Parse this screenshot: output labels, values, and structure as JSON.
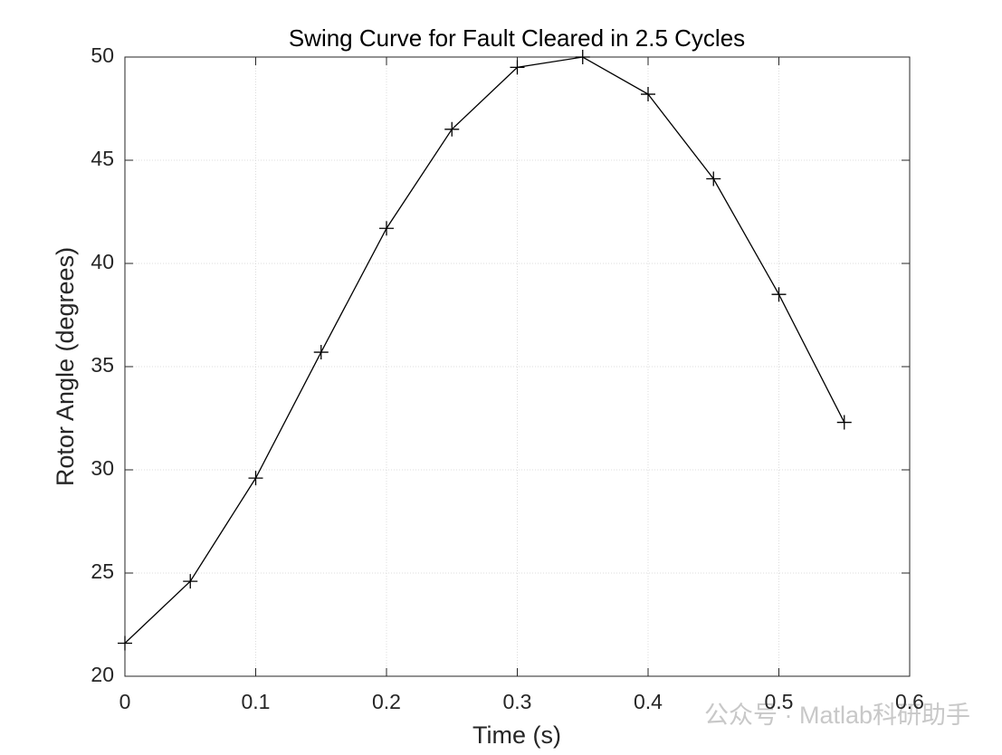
{
  "chart_data": {
    "type": "line",
    "title": "Swing Curve for Fault Cleared in 2.5 Cycles",
    "x_label": "Time (s)",
    "y_label": "Rotor Angle (degrees)",
    "x": [
      0,
      0.05,
      0.1,
      0.15,
      0.2,
      0.25,
      0.3,
      0.35,
      0.4,
      0.45,
      0.5,
      0.55
    ],
    "series": [
      {
        "name": "Rotor Angle",
        "color": "#000000",
        "values": [
          21.6,
          24.6,
          29.6,
          35.7,
          41.7,
          46.5,
          49.5,
          50.0,
          48.2,
          44.1,
          38.5,
          32.3
        ]
      }
    ],
    "xlim": [
      0,
      0.6
    ],
    "ylim": [
      20,
      50
    ],
    "xticks": [
      0,
      0.1,
      0.2,
      0.3,
      0.4,
      0.5,
      0.6
    ],
    "yticks": [
      20,
      25,
      30,
      35,
      40,
      45,
      50
    ],
    "grid": true,
    "marker": "+",
    "watermark": "公众号 · Matlab科研助手"
  }
}
